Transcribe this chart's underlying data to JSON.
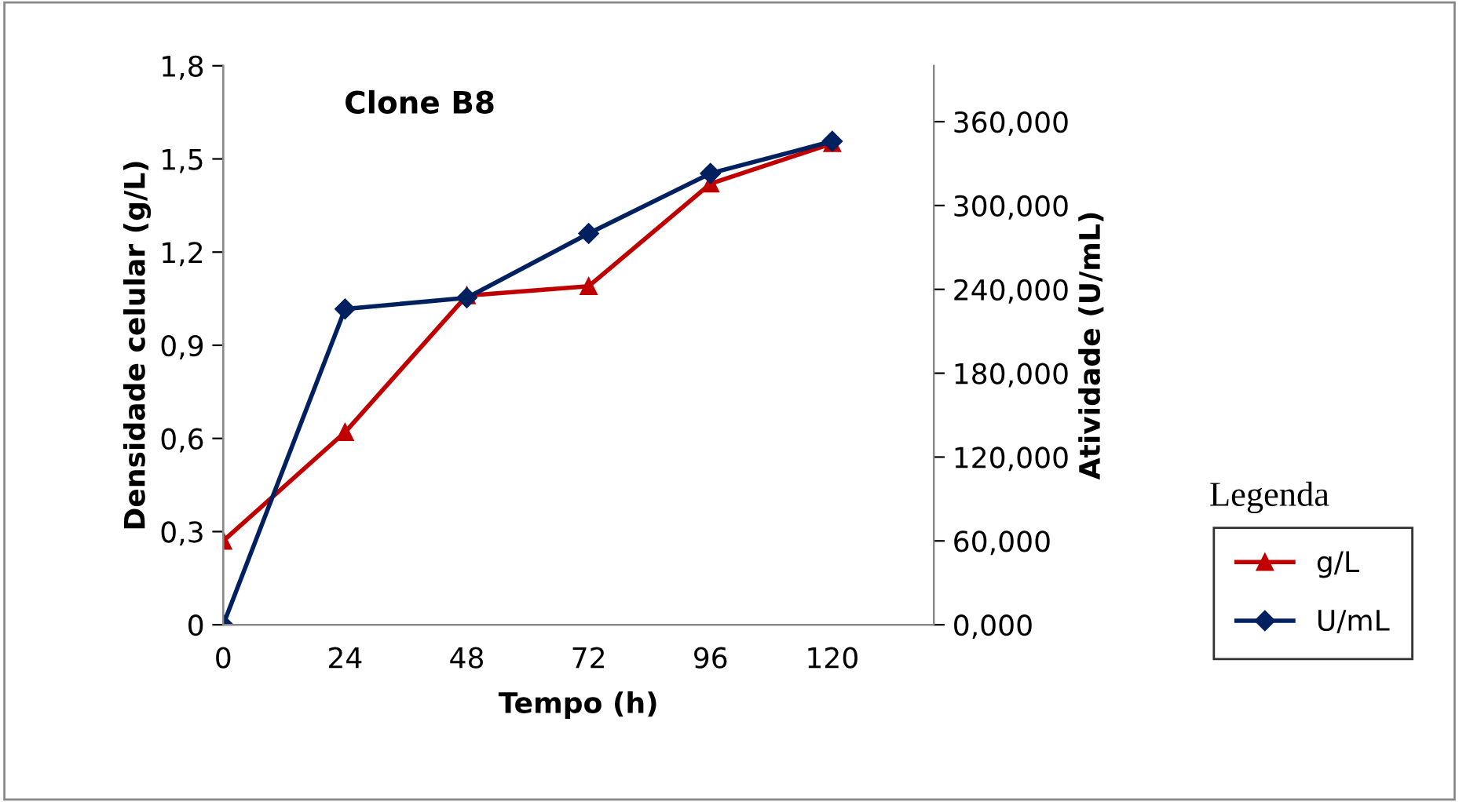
{
  "chart_data": {
    "type": "line",
    "title": "Clone B8",
    "xlabel": "Tempo (h)",
    "ylabel": "Densidade celular (g/L)",
    "y2label": "Atividade (U/mL)",
    "legend_title": "Legenda",
    "legend": "right",
    "grid": false,
    "x": [
      0,
      24,
      48,
      72,
      96,
      120
    ],
    "xlim": [
      0,
      140
    ],
    "xticks": [
      0,
      24,
      48,
      72,
      96,
      120
    ],
    "ylim": [
      0,
      1.8
    ],
    "yticks": [
      0,
      {
        "value": 0.3,
        "label": "0,3"
      },
      {
        "value": 0.6,
        "label": "0,6"
      },
      {
        "value": 0.9,
        "label": "0,9"
      },
      {
        "value": 1.2,
        "label": "1,2"
      },
      {
        "value": 1.5,
        "label": "1,5"
      },
      {
        "value": 1.8,
        "label": "1,8"
      }
    ],
    "y2lim": [
      0,
      400
    ],
    "y2ticks": [
      {
        "value": 0,
        "label": "0,000"
      },
      {
        "value": 60,
        "label": "60,000"
      },
      {
        "value": 120,
        "label": "120,000"
      },
      {
        "value": 180,
        "label": "180,000"
      },
      {
        "value": 240,
        "label": "240,000"
      },
      {
        "value": 300,
        "label": "300,000"
      },
      {
        "value": 360,
        "label": "360,000"
      }
    ],
    "series": [
      {
        "name": "g/L",
        "color": "#c00000",
        "marker": "triangle",
        "values": [
          0.27,
          0.62,
          1.06,
          1.09,
          1.42,
          1.55
        ]
      },
      {
        "name": "U/mL",
        "color": "#002060",
        "marker": "diamond",
        "axis": "y2",
        "values": [
          0,
          226,
          234,
          280,
          323,
          346
        ]
      }
    ]
  }
}
